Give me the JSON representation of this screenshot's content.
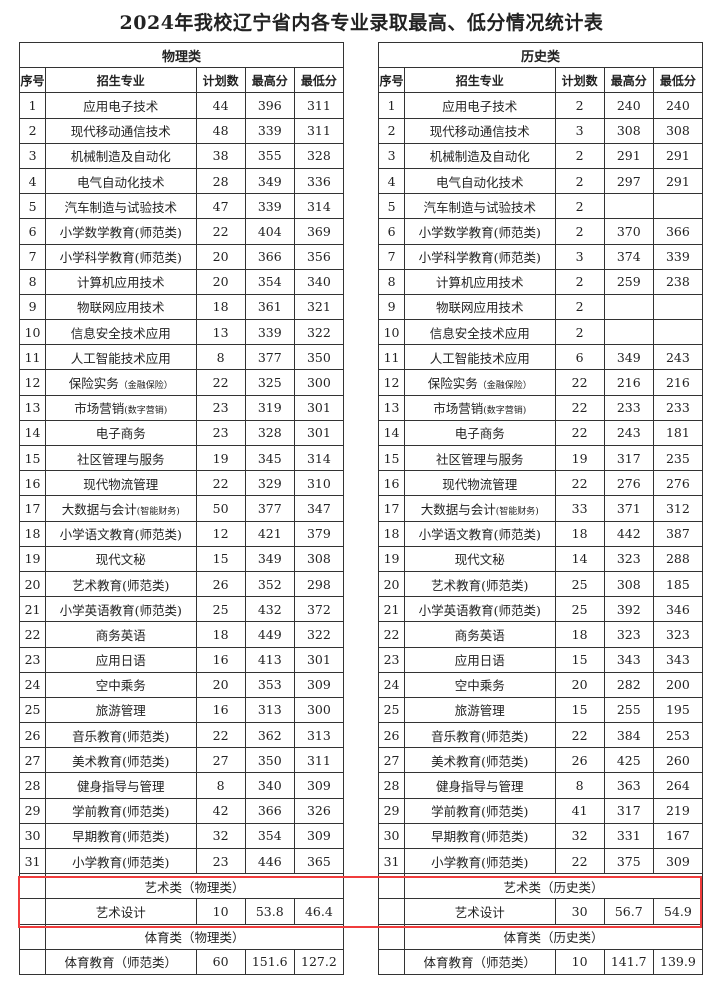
{
  "title": "2024年我校辽宁省内各专业录取最高、低分情况统计表",
  "highlight_color": "#f03c3c",
  "columns": [
    "序号",
    "招生专业",
    "计划数",
    "最高分",
    "最低分"
  ],
  "tables": [
    {
      "category": "物理类",
      "rows": [
        [
          "1",
          "应用电子技术",
          "",
          "44",
          "396",
          "311"
        ],
        [
          "2",
          "现代移动通信技术",
          "",
          "48",
          "339",
          "311"
        ],
        [
          "3",
          "机械制造及自动化",
          "",
          "38",
          "355",
          "328"
        ],
        [
          "4",
          "电气自动化技术",
          "",
          "28",
          "349",
          "336"
        ],
        [
          "5",
          "汽车制造与试验技术",
          "",
          "47",
          "339",
          "314"
        ],
        [
          "6",
          "小学数学教育(师范类)",
          "",
          "22",
          "404",
          "369"
        ],
        [
          "7",
          "小学科学教育(师范类)",
          "",
          "20",
          "366",
          "356"
        ],
        [
          "8",
          "计算机应用技术",
          "",
          "20",
          "354",
          "340"
        ],
        [
          "9",
          "物联网应用技术",
          "",
          "18",
          "361",
          "321"
        ],
        [
          "10",
          "信息安全技术应用",
          "",
          "13",
          "339",
          "322"
        ],
        [
          "11",
          "人工智能技术应用",
          "",
          "8",
          "377",
          "350"
        ],
        [
          "12",
          "保险实务",
          "（金融保险）",
          "22",
          "325",
          "300"
        ],
        [
          "13",
          "市场营销",
          "(数字营销)",
          "23",
          "319",
          "301"
        ],
        [
          "14",
          "电子商务",
          "",
          "23",
          "328",
          "301"
        ],
        [
          "15",
          "社区管理与服务",
          "",
          "19",
          "345",
          "314"
        ],
        [
          "16",
          "现代物流管理",
          "",
          "22",
          "329",
          "310"
        ],
        [
          "17",
          "大数据与会计",
          "(智能财务)",
          "50",
          "377",
          "347"
        ],
        [
          "18",
          "小学语文教育(师范类)",
          "",
          "12",
          "421",
          "379"
        ],
        [
          "19",
          "现代文秘",
          "",
          "15",
          "349",
          "308"
        ],
        [
          "20",
          "艺术教育(师范类)",
          "",
          "26",
          "352",
          "298"
        ],
        [
          "21",
          "小学英语教育(师范类)",
          "",
          "25",
          "432",
          "372"
        ],
        [
          "22",
          "商务英语",
          "",
          "18",
          "449",
          "322"
        ],
        [
          "23",
          "应用日语",
          "",
          "16",
          "413",
          "301"
        ],
        [
          "24",
          "空中乘务",
          "",
          "20",
          "353",
          "309"
        ],
        [
          "25",
          "旅游管理",
          "",
          "16",
          "313",
          "300"
        ],
        [
          "26",
          "音乐教育(师范类)",
          "",
          "22",
          "362",
          "313"
        ],
        [
          "27",
          "美术教育(师范类)",
          "",
          "27",
          "350",
          "311"
        ],
        [
          "28",
          "健身指导与管理",
          "",
          "8",
          "340",
          "309"
        ],
        [
          "29",
          "学前教育(师范类)",
          "",
          "42",
          "366",
          "326"
        ],
        [
          "30",
          "早期教育(师范类)",
          "",
          "32",
          "354",
          "309"
        ],
        [
          "31",
          "小学教育(师范类)",
          "",
          "23",
          "446",
          "365"
        ]
      ],
      "sections": [
        {
          "label": "艺术类（物理类）",
          "major": "艺术设计",
          "plan": "10",
          "max": "53.8",
          "min": "46.4"
        },
        {
          "label": "体育类（物理类）",
          "major": "体育教育（师范类）",
          "plan": "60",
          "max": "151.6",
          "min": "127.2"
        }
      ]
    },
    {
      "category": "历史类",
      "rows": [
        [
          "1",
          "应用电子技术",
          "",
          "2",
          "240",
          "240"
        ],
        [
          "2",
          "现代移动通信技术",
          "",
          "3",
          "308",
          "308"
        ],
        [
          "3",
          "机械制造及自动化",
          "",
          "2",
          "291",
          "291"
        ],
        [
          "4",
          "电气自动化技术",
          "",
          "2",
          "297",
          "291"
        ],
        [
          "5",
          "汽车制造与试验技术",
          "",
          "2",
          "",
          ""
        ],
        [
          "6",
          "小学数学教育(师范类)",
          "",
          "2",
          "370",
          "366"
        ],
        [
          "7",
          "小学科学教育(师范类)",
          "",
          "3",
          "374",
          "339"
        ],
        [
          "8",
          "计算机应用技术",
          "",
          "2",
          "259",
          "238"
        ],
        [
          "9",
          "物联网应用技术",
          "",
          "2",
          "",
          ""
        ],
        [
          "10",
          "信息安全技术应用",
          "",
          "2",
          "",
          ""
        ],
        [
          "11",
          "人工智能技术应用",
          "",
          "6",
          "349",
          "243"
        ],
        [
          "12",
          "保险实务",
          "（金融保险）",
          "22",
          "216",
          "216"
        ],
        [
          "13",
          "市场营销",
          "(数字营销)",
          "22",
          "233",
          "233"
        ],
        [
          "14",
          "电子商务",
          "",
          "22",
          "243",
          "181"
        ],
        [
          "15",
          "社区管理与服务",
          "",
          "19",
          "317",
          "235"
        ],
        [
          "16",
          "现代物流管理",
          "",
          "22",
          "276",
          "276"
        ],
        [
          "17",
          "大数据与会计",
          "(智能财务)",
          "33",
          "371",
          "312"
        ],
        [
          "18",
          "小学语文教育(师范类)",
          "",
          "18",
          "442",
          "387"
        ],
        [
          "19",
          "现代文秘",
          "",
          "14",
          "323",
          "288"
        ],
        [
          "20",
          "艺术教育(师范类)",
          "",
          "25",
          "308",
          "185"
        ],
        [
          "21",
          "小学英语教育(师范类)",
          "",
          "25",
          "392",
          "346"
        ],
        [
          "22",
          "商务英语",
          "",
          "18",
          "323",
          "323"
        ],
        [
          "23",
          "应用日语",
          "",
          "15",
          "343",
          "343"
        ],
        [
          "24",
          "空中乘务",
          "",
          "20",
          "282",
          "200"
        ],
        [
          "25",
          "旅游管理",
          "",
          "15",
          "255",
          "195"
        ],
        [
          "26",
          "音乐教育(师范类)",
          "",
          "22",
          "384",
          "253"
        ],
        [
          "27",
          "美术教育(师范类)",
          "",
          "26",
          "425",
          "260"
        ],
        [
          "28",
          "健身指导与管理",
          "",
          "8",
          "363",
          "264"
        ],
        [
          "29",
          "学前教育(师范类)",
          "",
          "41",
          "317",
          "219"
        ],
        [
          "30",
          "早期教育(师范类)",
          "",
          "32",
          "331",
          "167"
        ],
        [
          "31",
          "小学教育(师范类)",
          "",
          "22",
          "375",
          "309"
        ]
      ],
      "sections": [
        {
          "label": "艺术类（历史类）",
          "major": "艺术设计",
          "plan": "30",
          "max": "56.7",
          "min": "54.9"
        },
        {
          "label": "体育类（历史类）",
          "major": "体育教育（师范类）",
          "plan": "10",
          "max": "141.7",
          "min": "139.9"
        }
      ]
    }
  ]
}
